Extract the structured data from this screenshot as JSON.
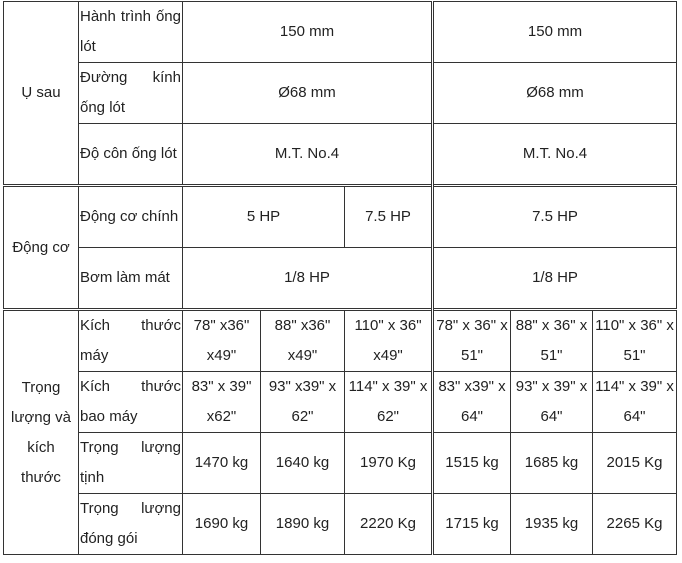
{
  "groups": {
    "u_sau": "Ụ sau",
    "dong_co": "Động cơ",
    "trong_luong": "Trọng lượng và kích thước"
  },
  "rows": {
    "hanh_trinh": {
      "label": "Hành trình ống lót",
      "a": "150 mm",
      "b": "150 mm"
    },
    "duong_kinh": {
      "label": "Đường kính ống lót",
      "a": "Ø68 mm",
      "b": "Ø68 mm"
    },
    "do_con": {
      "label": "Độ côn ống lót",
      "a": "M.T. No.4",
      "b": "M.T. No.4"
    },
    "dong_co_chinh": {
      "label": "Động cơ chính",
      "a1": "5 HP",
      "a2": "7.5 HP",
      "b": "7.5 HP"
    },
    "bom": {
      "label": "Bơm làm mát",
      "a": "1/8 HP",
      "b": "1/8 HP"
    },
    "kich_thuoc_may": {
      "label": "Kích thước máy",
      "values": [
        "78\" x36\" x49\"",
        "88\" x36\" x49\"",
        "110\" x 36\" x49\"",
        "78\" x 36\" x 51\"",
        "88\" x 36\" x 51\"",
        "110\" x 36\" x 51\""
      ]
    },
    "kich_thuoc_bao": {
      "label": "Kích thước bao máy",
      "values": [
        "83\" x 39\" x62\"",
        "93\" x39\" x 62\"",
        "114\" x 39\" x 62\"",
        "83\" x39\" x 64\"",
        "93\" x 39\" x 64\"",
        "114\" x 39\" x 64\""
      ]
    },
    "trong_luong_tinh": {
      "label": "Trọng lượng tịnh",
      "values": [
        "1470 kg",
        "1640 kg",
        "1970 Kg",
        "1515 kg",
        "1685 kg",
        "2015 Kg"
      ]
    },
    "trong_luong_dong_goi": {
      "label": "Trọng lượng đóng gói",
      "values": [
        "1690 kg",
        "1890 kg",
        "2220 Kg",
        "1715 kg",
        "1935 kg",
        "2265 Kg"
      ]
    }
  }
}
